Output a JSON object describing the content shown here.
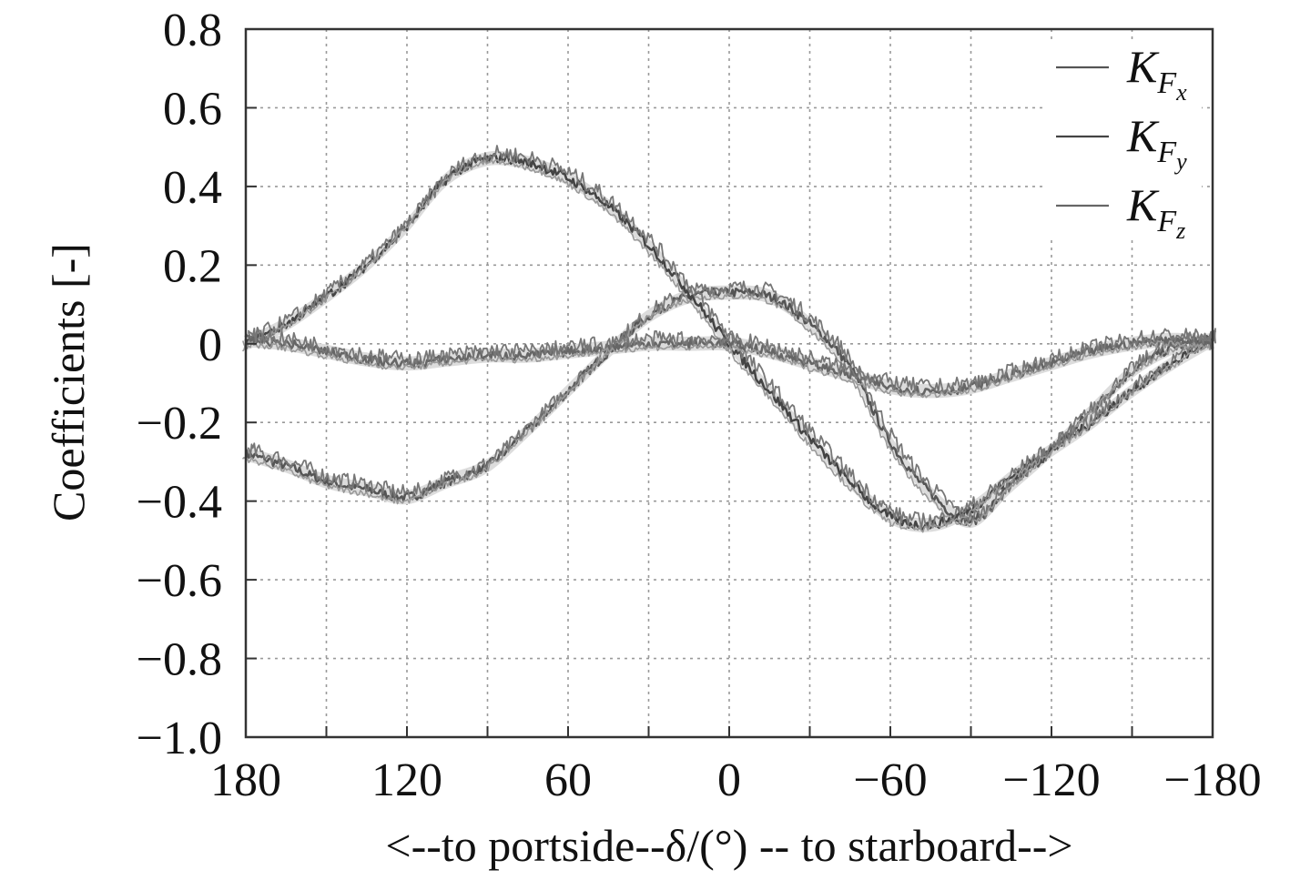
{
  "chart_data": {
    "type": "line",
    "xlabel": "<--to portside--δ/(°) -- to starboard-->",
    "ylabel": "Coefficients [-]",
    "xlim": [
      180,
      -180
    ],
    "ylim": [
      -1.0,
      0.8
    ],
    "x_ticks": [
      180,
      120,
      60,
      0,
      -60,
      -120,
      -180
    ],
    "x_tick_labels": [
      "180",
      "120",
      "60",
      "0",
      "−60",
      "−120",
      "−180"
    ],
    "y_ticks": [
      0.8,
      0.6,
      0.4,
      0.2,
      0,
      -0.2,
      -0.4,
      -0.6,
      -0.8,
      -1.0
    ],
    "y_tick_labels": [
      "0.8",
      "0.6",
      "0.4",
      "0.2",
      "0",
      "−0.2",
      "−0.4",
      "−0.6",
      "−0.8",
      "−1.0"
    ],
    "grid": true,
    "legend_position": "top-right",
    "series": [
      {
        "name": "KFx",
        "legend": {
          "base": "K",
          "sub": "F",
          "subsub": "x"
        },
        "color": "#555555",
        "x": [
          180,
          165,
          150,
          135,
          120,
          105,
          90,
          75,
          60,
          45,
          30,
          15,
          0,
          -15,
          -30,
          -45,
          -60,
          -75,
          -90,
          -105,
          -120,
          -135,
          -150,
          -165,
          -180
        ],
        "y": [
          -0.28,
          -0.31,
          -0.35,
          -0.37,
          -0.39,
          -0.35,
          -0.31,
          -0.22,
          -0.12,
          -0.02,
          0.07,
          0.12,
          0.13,
          0.12,
          0.05,
          -0.06,
          -0.25,
          -0.38,
          -0.45,
          -0.36,
          -0.27,
          -0.17,
          -0.07,
          -0.01,
          0.01
        ]
      },
      {
        "name": "KFy",
        "legend": {
          "base": "K",
          "sub": "F",
          "subsub": "y"
        },
        "color": "#444444",
        "x": [
          180,
          165,
          150,
          135,
          120,
          105,
          90,
          75,
          60,
          45,
          30,
          15,
          0,
          -15,
          -30,
          -45,
          -60,
          -75,
          -90,
          -105,
          -120,
          -135,
          -150,
          -165,
          -180
        ],
        "y": [
          0.0,
          0.05,
          0.12,
          0.2,
          0.3,
          0.42,
          0.47,
          0.46,
          0.42,
          0.35,
          0.25,
          0.13,
          0.0,
          -0.12,
          -0.24,
          -0.35,
          -0.44,
          -0.46,
          -0.42,
          -0.34,
          -0.27,
          -0.2,
          -0.12,
          -0.05,
          0.01
        ]
      },
      {
        "name": "KFz",
        "legend": {
          "base": "K",
          "sub": "F",
          "subsub": "z"
        },
        "color": "#666666",
        "x": [
          180,
          165,
          150,
          135,
          120,
          105,
          90,
          75,
          60,
          45,
          30,
          15,
          0,
          -15,
          -30,
          -45,
          -60,
          -75,
          -90,
          -105,
          -120,
          -135,
          -150,
          -165,
          -180
        ],
        "y": [
          0.01,
          0.0,
          -0.02,
          -0.04,
          -0.05,
          -0.04,
          -0.03,
          -0.03,
          -0.02,
          -0.01,
          0.0,
          0.0,
          0.0,
          -0.02,
          -0.05,
          -0.08,
          -0.11,
          -0.12,
          -0.11,
          -0.08,
          -0.05,
          -0.02,
          0.0,
          0.01,
          0.0
        ]
      }
    ]
  }
}
